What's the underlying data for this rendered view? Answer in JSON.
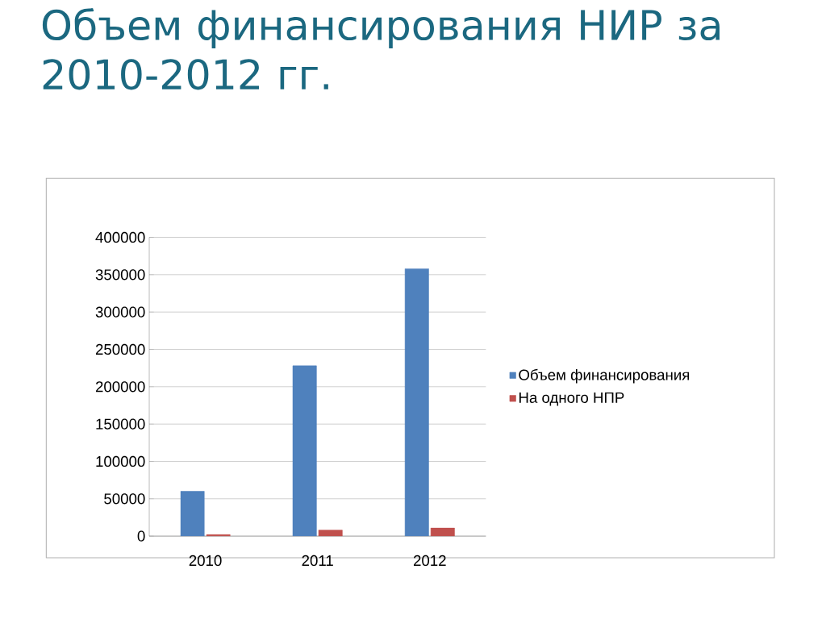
{
  "chart_data": {
    "type": "bar",
    "title": "Объем финансирования НИР за 2010-2012 гг.",
    "categories": [
      "2010",
      "2011",
      "2012"
    ],
    "series": [
      {
        "name": "Объем финансирования",
        "color": "#4f81bd",
        "values": [
          60000,
          228000,
          358000
        ]
      },
      {
        "name": "На одного НПР",
        "color": "#c0504d",
        "values": [
          2000,
          8000,
          11000
        ]
      }
    ],
    "ylim": [
      0,
      400000
    ],
    "yticks": [
      0,
      50000,
      100000,
      150000,
      200000,
      250000,
      300000,
      350000,
      400000
    ],
    "grid": "y",
    "legend": "right"
  }
}
